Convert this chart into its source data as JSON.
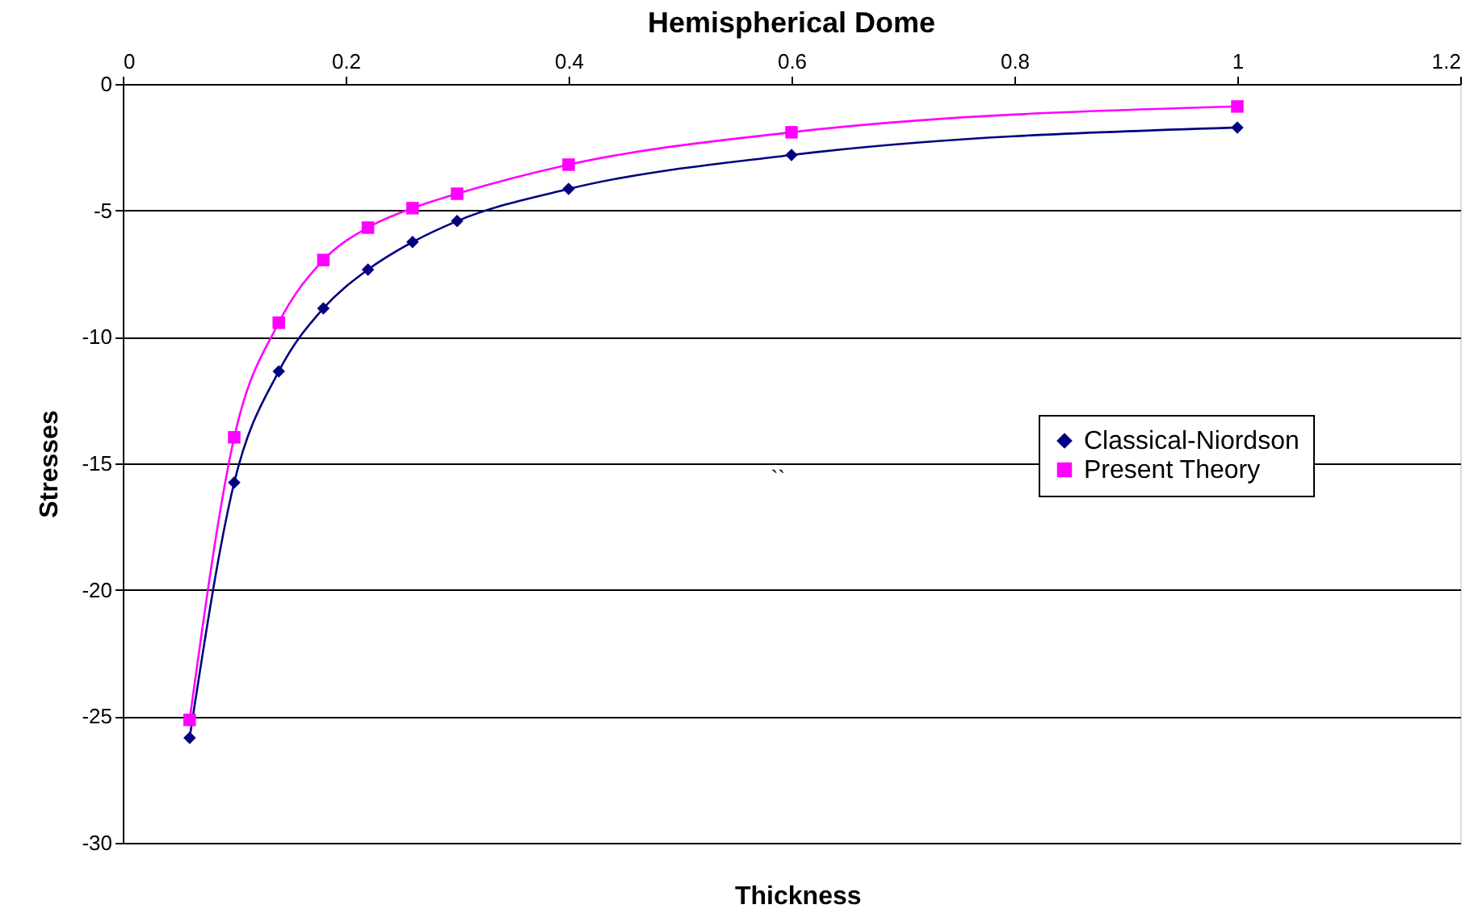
{
  "chart_data": {
    "type": "line",
    "title": "Hemispherical Dome",
    "xlabel": "Thickness",
    "ylabel": "Stresses",
    "x": [
      0.06,
      0.1,
      0.14,
      0.18,
      0.22,
      0.26,
      0.3,
      0.4,
      0.6,
      1.0
    ],
    "series": [
      {
        "name": "Classical-Niordson",
        "color": "#000080",
        "marker": "diamond",
        "values": [
          -25.85,
          -15.76,
          -11.36,
          -8.87,
          -7.34,
          -6.25,
          -5.42,
          -4.15,
          -2.81,
          -1.72
        ]
      },
      {
        "name": "Present Theory",
        "color": "#ff00ff",
        "marker": "square",
        "values": [
          -25.14,
          -13.97,
          -9.44,
          -6.96,
          -5.68,
          -4.91,
          -4.34,
          -3.19,
          -1.91,
          -0.89
        ]
      }
    ],
    "xlim": [
      0,
      1.2
    ],
    "xticks": [
      0,
      0.2,
      0.4,
      0.6,
      0.8,
      1,
      1.2
    ],
    "ylim": [
      -30,
      0
    ],
    "yticks": [
      -30,
      -25,
      -20,
      -15,
      -10,
      -5,
      0
    ],
    "grid": "y",
    "legend": "right",
    "annotations": [
      "``"
    ]
  }
}
